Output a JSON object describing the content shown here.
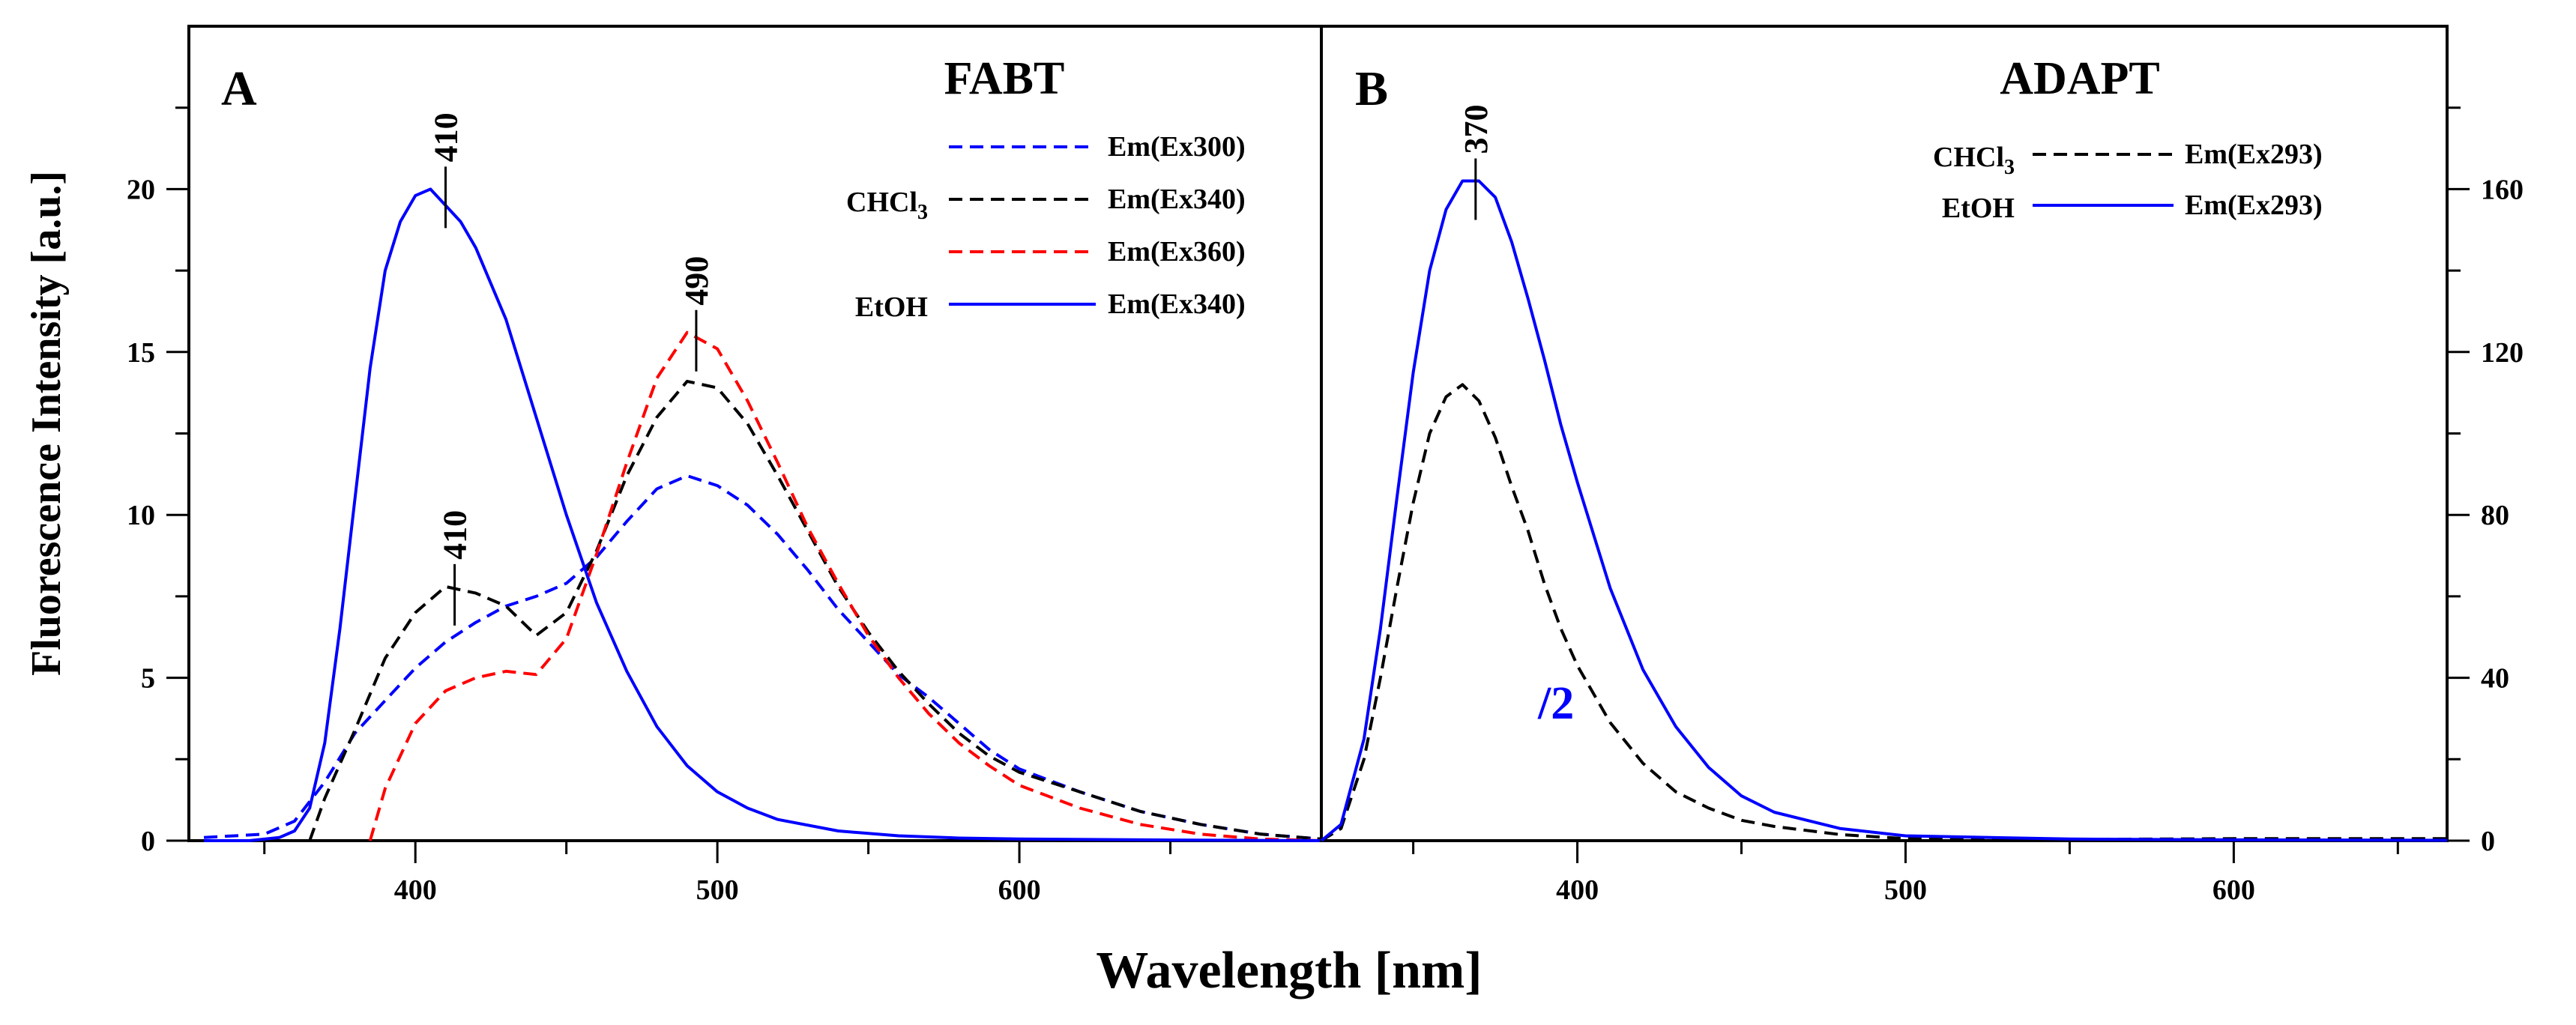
{
  "chart_data": {
    "type": "line",
    "xlabel": "Wavelength [nm]",
    "ylabel": "Fluorescence Intensity [a.u.]",
    "panels": [
      {
        "letter": "A",
        "title": "FABT",
        "xlim": [
          325,
          700
        ],
        "ylim": [
          0,
          25
        ],
        "x_major_ticks": [
          400,
          500,
          600
        ],
        "x_minor_ticks": [
          350,
          450,
          550,
          650
        ],
        "y_major_ticks": [
          0,
          5,
          10,
          15,
          20
        ],
        "y_minor_ticks": [
          2.5,
          7.5,
          12.5,
          17.5,
          22.5
        ],
        "legend_position": "top-right",
        "legend_groups": [
          {
            "solvent": "CHCl",
            "solvent_sub": "3",
            "row": 1
          },
          {
            "solvent": "EtOH",
            "solvent_sub": "",
            "row": 3
          }
        ],
        "series": [
          {
            "name": "Em(Ex300)",
            "color": "#0000ff",
            "dash": "dashed",
            "x": [
              330,
              350,
              360,
              370,
              380,
              390,
              400,
              410,
              420,
              430,
              440,
              450,
              460,
              470,
              480,
              490,
              500,
              510,
              520,
              530,
              540,
              550,
              560,
              570,
              580,
              590,
              600,
              620,
              640,
              660,
              680,
              700
            ],
            "y": [
              0.1,
              0.2,
              0.6,
              1.8,
              3.3,
              4.3,
              5.3,
              6.1,
              6.7,
              7.2,
              7.5,
              7.9,
              8.7,
              9.8,
              10.8,
              11.2,
              10.9,
              10.3,
              9.4,
              8.3,
              7.1,
              6.1,
              5.1,
              4.4,
              3.6,
              2.8,
              2.2,
              1.5,
              0.9,
              0.5,
              0.2,
              0.05
            ]
          },
          {
            "name": "Em(Ex340)",
            "color": "#000000",
            "dash": "dashed",
            "x": [
              365,
              370,
              380,
              390,
              400,
              410,
              420,
              430,
              440,
              450,
              460,
              470,
              480,
              490,
              500,
              510,
              520,
              530,
              540,
              550,
              560,
              570,
              580,
              590,
              600,
              620,
              640,
              660,
              680,
              700
            ],
            "y": [
              0.0,
              1.3,
              3.4,
              5.6,
              7.0,
              7.8,
              7.6,
              7.2,
              6.3,
              7.0,
              8.9,
              11.2,
              13.0,
              14.1,
              13.9,
              12.8,
              11.2,
              9.5,
              7.8,
              6.4,
              5.2,
              4.2,
              3.3,
              2.6,
              2.1,
              1.5,
              0.9,
              0.5,
              0.2,
              0.05
            ]
          },
          {
            "name": "Em(Ex360)",
            "color": "#ff0000",
            "dash": "dashed",
            "x": [
              385,
              390,
              400,
              410,
              420,
              430,
              440,
              450,
              460,
              470,
              480,
              490,
              500,
              510,
              520,
              530,
              540,
              550,
              560,
              570,
              580,
              590,
              600,
              620,
              640,
              660,
              680,
              700
            ],
            "y": [
              0.0,
              1.6,
              3.6,
              4.6,
              5.0,
              5.2,
              5.1,
              6.2,
              8.8,
              11.6,
              14.2,
              15.6,
              15.1,
              13.5,
              11.6,
              9.6,
              7.9,
              6.3,
              5.0,
              3.9,
              3.0,
              2.3,
              1.7,
              1.0,
              0.5,
              0.2,
              0.05,
              0.0
            ]
          },
          {
            "name": "Em(Ex340)",
            "color": "#0000ff",
            "dash": "solid",
            "x": [
              330,
              345,
              355,
              360,
              365,
              370,
              375,
              380,
              385,
              390,
              395,
              400,
              405,
              410,
              415,
              420,
              430,
              440,
              450,
              460,
              470,
              480,
              490,
              500,
              510,
              520,
              540,
              560,
              580,
              600,
              650,
              700
            ],
            "y": [
              0.0,
              0.0,
              0.1,
              0.3,
              1.0,
              3.0,
              6.5,
              10.5,
              14.5,
              17.5,
              19.0,
              19.8,
              20.0,
              19.5,
              19.0,
              18.2,
              16.0,
              13.0,
              10.0,
              7.3,
              5.2,
              3.5,
              2.3,
              1.5,
              1.0,
              0.65,
              0.3,
              0.15,
              0.08,
              0.05,
              0.02,
              0.0
            ]
          }
        ],
        "peak_labels": [
          {
            "text": "410",
            "x": 410,
            "y": 20.0
          },
          {
            "text": "410",
            "x": 413,
            "y": 7.8
          },
          {
            "text": "490",
            "x": 493,
            "y": 15.6
          }
        ]
      },
      {
        "letter": "B",
        "title": "ADAPT",
        "xlim": [
          322,
          665
        ],
        "ylim": [
          0,
          200
        ],
        "x_major_ticks": [
          400,
          500,
          600
        ],
        "x_minor_ticks": [
          350,
          450,
          550,
          650
        ],
        "y_major_ticks": [
          0,
          40,
          80,
          120,
          160
        ],
        "y_minor_ticks": [
          20,
          60,
          100,
          140,
          180
        ],
        "y_axis_side": "right",
        "legend_position": "top-right",
        "legend_groups": [
          {
            "solvent": "CHCl",
            "solvent_sub": "3",
            "row": 0
          },
          {
            "solvent": "EtOH",
            "solvent_sub": "",
            "row": 1
          }
        ],
        "annotation": {
          "text": "/2",
          "x": 388,
          "y": 30,
          "color": "#0000ff"
        },
        "series": [
          {
            "name": "Em(Ex293)",
            "color": "#000000",
            "dash": "dashed",
            "x": [
              322,
              328,
              335,
              340,
              345,
              350,
              355,
              360,
              365,
              370,
              375,
              380,
              385,
              390,
              395,
              400,
              410,
              420,
              430,
              440,
              450,
              460,
              480,
              500,
              550,
              600,
              665
            ],
            "y": [
              0,
              3,
              20,
              40,
              62,
              83,
              100,
              109,
              112,
              108,
              99,
              87,
              76,
              63,
              52,
              43,
              29,
              19,
              12,
              8,
              5,
              3.5,
              1.5,
              0.5,
              0.3,
              0.5,
              0.5
            ]
          },
          {
            "name": "Em(Ex293)",
            "color": "#0000ff",
            "dash": "solid",
            "x": [
              322,
              328,
              335,
              340,
              345,
              350,
              355,
              360,
              365,
              370,
              375,
              380,
              385,
              390,
              395,
              400,
              410,
              420,
              430,
              440,
              450,
              460,
              480,
              500,
              550,
              600,
              665
            ],
            "y": [
              0,
              4,
              25,
              52,
              84,
              115,
              140,
              155,
              162,
              162,
              158,
              147,
              133,
              118,
              102,
              88,
              62,
              42,
              28,
              18,
              11,
              7,
              3,
              1.2,
              0.4,
              0.2,
              0.1
            ]
          }
        ],
        "peak_labels": [
          {
            "text": "370",
            "x": 369,
            "y": 162
          }
        ]
      }
    ]
  }
}
